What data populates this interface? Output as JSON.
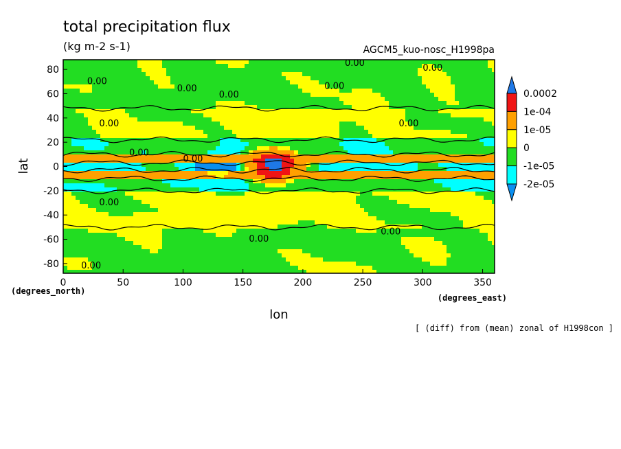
{
  "chart_data": {
    "type": "heatmap",
    "title": "total precipitation flux",
    "subtitle": "(kg m-2 s-1)",
    "run_label": "AGCM5_kuo-nosc_H1998pa",
    "xlabel": "lon",
    "ylabel": "lat",
    "x_unit": "(degrees_east)",
    "y_unit": "(degrees_north)",
    "footnote": "[ (diff) from (mean) zonal of H1998con ]",
    "xlim": [
      0,
      360
    ],
    "ylim": [
      -88,
      88
    ],
    "x_ticks": [
      "0",
      "50",
      "100",
      "150",
      "200",
      "250",
      "300",
      "350"
    ],
    "y_ticks": [
      "-80",
      "-60",
      "-40",
      "-20",
      "0",
      "20",
      "40",
      "60",
      "80"
    ],
    "contour_label": "0.00",
    "colorbar": {
      "levels": [
        "-2e-05",
        "-1e-05",
        "0",
        "1e-05",
        "1e-04",
        "0.0002"
      ],
      "colors": [
        "#0a8ff0",
        "#00ffff",
        "#22dd22",
        "#ffff00",
        "#ffa000",
        "#f01414",
        "#1e78e6"
      ]
    },
    "zonal_bands": [
      {
        "lat": [
          -88,
          -50
        ],
        "value": -1.5e-06
      },
      {
        "lat": [
          -50,
          -20
        ],
        "value": 1.5e-06
      },
      {
        "lat": [
          -20,
          -10
        ],
        "value": -8e-06
      },
      {
        "lat": [
          -10,
          -3
        ],
        "value": 3e-05
      },
      {
        "lat": [
          -3,
          3
        ],
        "value": -1.2e-05
      },
      {
        "lat": [
          3,
          10
        ],
        "value": 3e-05
      },
      {
        "lat": [
          10,
          22
        ],
        "value": -8e-06
      },
      {
        "lat": [
          22,
          48
        ],
        "value": 1.5e-06
      },
      {
        "lat": [
          48,
          88
        ],
        "value": -1.5e-06
      }
    ],
    "maximum": {
      "lon": 176,
      "lat": 1,
      "value": 0.0002
    },
    "grid": false,
    "legend": "right"
  }
}
